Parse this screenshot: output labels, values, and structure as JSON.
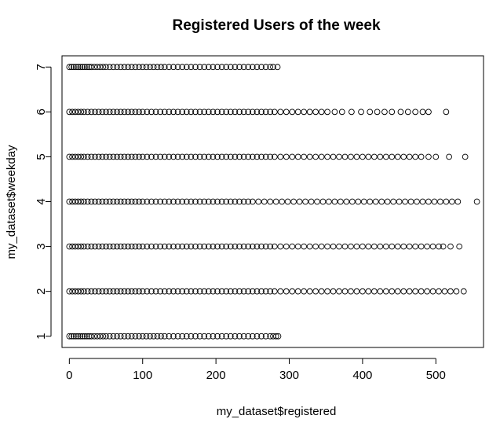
{
  "chart_data": {
    "type": "scatter",
    "title": "Registered Users of the week",
    "xlabel": "my_dataset$registered",
    "ylabel": "my_dataset$weekday",
    "xlim": [
      -10,
      565
    ],
    "ylim": [
      0.75,
      7.25
    ],
    "x_ticks": [
      0,
      100,
      200,
      300,
      400,
      500
    ],
    "y_ticks": [
      1,
      2,
      3,
      4,
      5,
      6,
      7
    ],
    "x_tick_labels": [
      "0",
      "100",
      "200",
      "300",
      "400",
      "500"
    ],
    "y_tick_labels": [
      "1",
      "2",
      "3",
      "4",
      "5",
      "6",
      "7"
    ],
    "marker": "open-circle",
    "grid": false,
    "legend": "none",
    "series": [
      {
        "y": 1,
        "x": [
          0,
          3,
          6,
          9,
          12,
          15,
          18,
          21,
          24,
          27,
          30,
          34,
          38,
          42,
          46,
          50,
          55,
          60,
          65,
          70,
          75,
          80,
          85,
          90,
          95,
          100,
          105,
          110,
          115,
          120,
          125,
          130,
          136,
          142,
          148,
          154,
          160,
          166,
          172,
          178,
          184,
          190,
          196,
          202,
          208,
          214,
          220,
          226,
          232,
          238,
          244,
          250,
          256,
          262,
          268,
          274,
          278,
          282,
          285
        ]
      },
      {
        "y": 2,
        "x": [
          0,
          4,
          8,
          12,
          16,
          20,
          25,
          30,
          35,
          40,
          45,
          50,
          55,
          60,
          65,
          70,
          75,
          80,
          85,
          90,
          95,
          100,
          106,
          112,
          118,
          124,
          130,
          136,
          142,
          148,
          154,
          160,
          166,
          172,
          178,
          184,
          190,
          196,
          202,
          208,
          214,
          220,
          226,
          232,
          238,
          244,
          250,
          256,
          262,
          268,
          274,
          280,
          288,
          296,
          304,
          312,
          320,
          328,
          336,
          344,
          352,
          360,
          368,
          376,
          384,
          392,
          400,
          408,
          416,
          424,
          432,
          440,
          448,
          456,
          464,
          472,
          480,
          488,
          496,
          504,
          512,
          520,
          528,
          538
        ]
      },
      {
        "y": 3,
        "x": [
          0,
          4,
          8,
          12,
          16,
          20,
          25,
          30,
          35,
          40,
          45,
          50,
          55,
          60,
          65,
          70,
          75,
          80,
          85,
          90,
          95,
          100,
          106,
          112,
          118,
          124,
          130,
          136,
          142,
          148,
          154,
          160,
          166,
          172,
          178,
          184,
          190,
          196,
          202,
          208,
          214,
          220,
          226,
          232,
          238,
          244,
          250,
          256,
          262,
          268,
          274,
          280,
          288,
          296,
          304,
          312,
          320,
          328,
          336,
          344,
          352,
          360,
          368,
          376,
          384,
          392,
          400,
          408,
          416,
          424,
          432,
          440,
          448,
          456,
          464,
          472,
          480,
          488,
          496,
          504,
          510,
          520,
          532
        ]
      },
      {
        "y": 4,
        "x": [
          0,
          4,
          8,
          12,
          16,
          20,
          25,
          30,
          35,
          40,
          45,
          50,
          55,
          60,
          65,
          70,
          75,
          80,
          85,
          90,
          95,
          100,
          106,
          112,
          118,
          124,
          130,
          136,
          142,
          148,
          154,
          160,
          166,
          172,
          178,
          184,
          190,
          196,
          202,
          208,
          214,
          220,
          226,
          232,
          238,
          244,
          250,
          258,
          266,
          274,
          282,
          290,
          298,
          306,
          314,
          322,
          330,
          338,
          346,
          354,
          362,
          370,
          378,
          386,
          394,
          402,
          410,
          418,
          426,
          434,
          442,
          450,
          458,
          466,
          474,
          482,
          490,
          498,
          506,
          514,
          522,
          530,
          556
        ]
      },
      {
        "y": 5,
        "x": [
          0,
          4,
          8,
          12,
          16,
          20,
          25,
          30,
          35,
          40,
          45,
          50,
          55,
          60,
          65,
          70,
          75,
          80,
          85,
          90,
          95,
          100,
          106,
          112,
          118,
          124,
          130,
          136,
          142,
          148,
          154,
          160,
          166,
          172,
          178,
          184,
          190,
          196,
          202,
          208,
          214,
          220,
          226,
          232,
          238,
          244,
          250,
          256,
          262,
          268,
          274,
          280,
          288,
          296,
          304,
          312,
          320,
          328,
          336,
          344,
          352,
          360,
          368,
          376,
          384,
          392,
          400,
          408,
          416,
          424,
          432,
          440,
          448,
          456,
          464,
          472,
          480,
          490,
          500,
          518,
          540
        ]
      },
      {
        "y": 6,
        "x": [
          0,
          4,
          8,
          12,
          16,
          20,
          25,
          30,
          35,
          40,
          45,
          50,
          55,
          60,
          65,
          70,
          75,
          80,
          85,
          90,
          95,
          100,
          106,
          112,
          118,
          124,
          130,
          136,
          142,
          148,
          154,
          160,
          166,
          172,
          178,
          184,
          190,
          196,
          202,
          208,
          214,
          220,
          226,
          232,
          238,
          244,
          250,
          256,
          262,
          268,
          274,
          280,
          288,
          296,
          304,
          312,
          320,
          328,
          336,
          344,
          352,
          362,
          372,
          385,
          398,
          410,
          420,
          430,
          440,
          452,
          462,
          472,
          482,
          490,
          514
        ]
      },
      {
        "y": 7,
        "x": [
          0,
          3,
          6,
          9,
          12,
          15,
          18,
          21,
          24,
          27,
          30,
          34,
          38,
          42,
          46,
          50,
          55,
          60,
          65,
          70,
          75,
          80,
          85,
          90,
          95,
          100,
          105,
          110,
          115,
          120,
          125,
          130,
          136,
          142,
          148,
          154,
          160,
          166,
          172,
          178,
          184,
          190,
          196,
          202,
          208,
          214,
          220,
          226,
          232,
          238,
          244,
          250,
          256,
          262,
          268,
          274,
          278,
          284
        ]
      }
    ]
  }
}
